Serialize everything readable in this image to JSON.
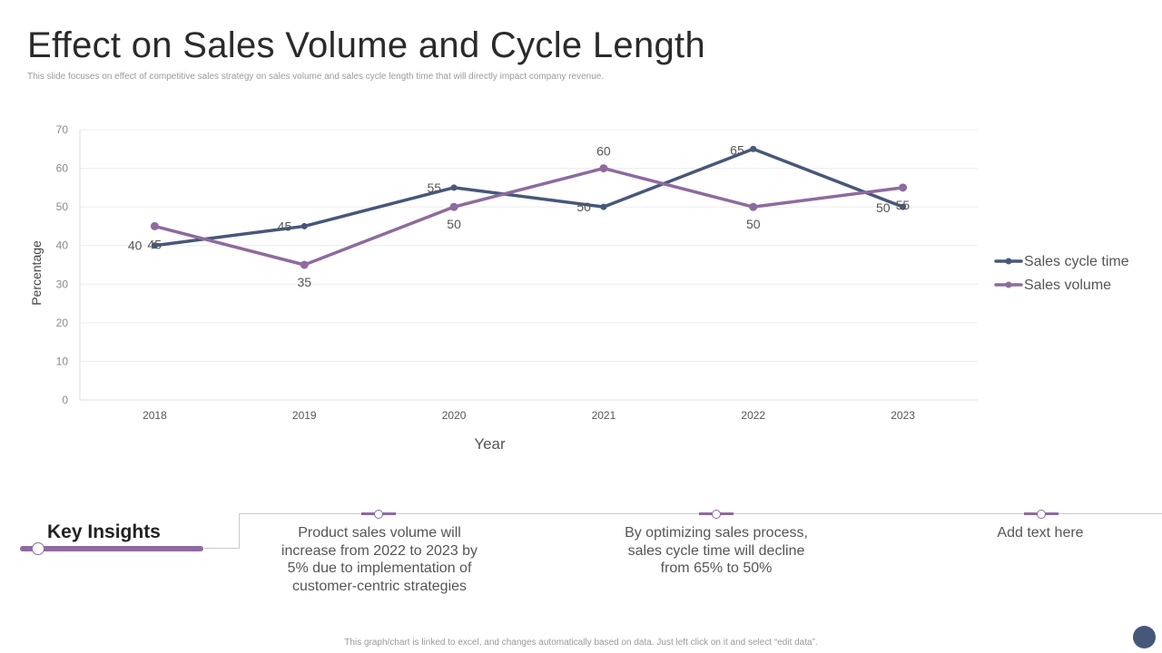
{
  "header": {
    "title": "Effect on Sales Volume and Cycle Length",
    "subtitle": "This slide focuses on effect of competitive sales strategy on sales volume and sales cycle length time that will directly impact company revenue."
  },
  "chart_data": {
    "type": "line",
    "x": [
      "2018",
      "2019",
      "2020",
      "2021",
      "2022",
      "2023"
    ],
    "series": [
      {
        "name": "Sales cycle time",
        "values": [
          40,
          45,
          55,
          50,
          65,
          50
        ],
        "color": "#47577a"
      },
      {
        "name": "Sales volume",
        "values": [
          45,
          35,
          50,
          60,
          50,
          55
        ],
        "color": "#8e6a9e"
      }
    ],
    "xlabel": "Year",
    "ylabel": "Percentage",
    "ylim": [
      0,
      70
    ],
    "yticks": [
      0,
      10,
      20,
      30,
      40,
      50,
      60,
      70
    ],
    "grid": true,
    "legend_position": "right"
  },
  "insights": {
    "title": "Key Insights",
    "items": [
      "Product sales volume will increase from 2022 to 2023 by 5% due to implementation of customer-centric strategies",
      "By optimizing sales process, sales cycle time will decline from 65% to 50%",
      "Add text here"
    ]
  },
  "footer": {
    "note": "This graph/chart is linked to excel, and changes automatically based on data. Just left click on it and select “edit data”."
  }
}
